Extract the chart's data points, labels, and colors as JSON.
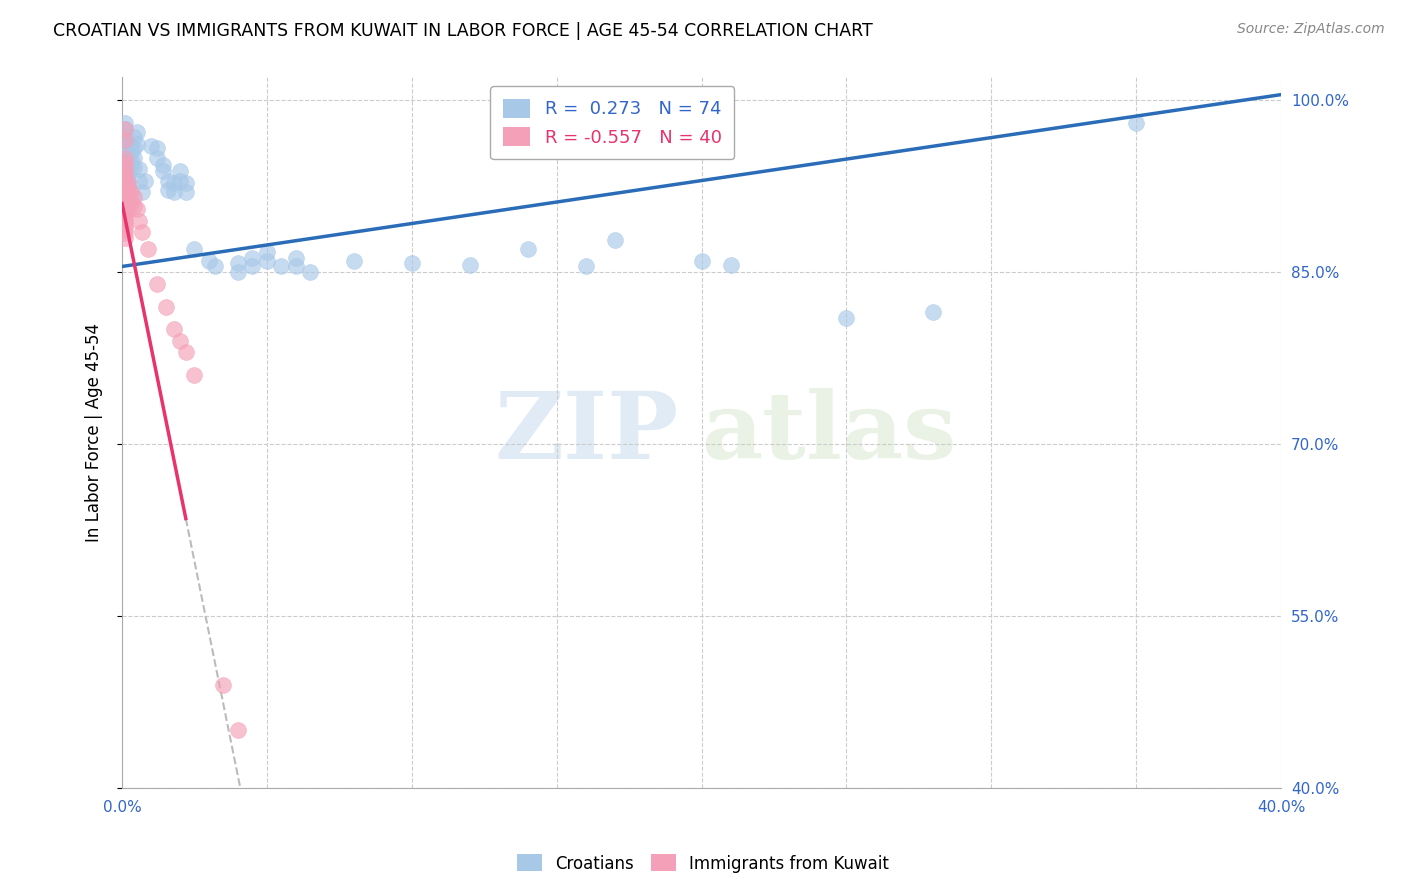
{
  "title": "CROATIAN VS IMMIGRANTS FROM KUWAIT IN LABOR FORCE | AGE 45-54 CORRELATION CHART",
  "source": "Source: ZipAtlas.com",
  "ylabel": "In Labor Force | Age 45-54",
  "xlim": [
    0.0,
    0.4
  ],
  "ylim": [
    0.4,
    1.02
  ],
  "yticks": [
    0.4,
    0.55,
    0.7,
    0.85,
    1.0
  ],
  "ytick_labels": [
    "40.0%",
    "55.0%",
    "70.0%",
    "85.0%",
    "100.0%"
  ],
  "xticks": [
    0.0,
    0.05,
    0.1,
    0.15,
    0.2,
    0.25,
    0.3,
    0.35,
    0.4
  ],
  "xtick_labels": [
    "0.0%",
    "",
    "",
    "",
    "",
    "",
    "",
    "",
    "40.0%"
  ],
  "blue_R": 0.273,
  "blue_N": 74,
  "pink_R": -0.557,
  "pink_N": 40,
  "blue_color": "#A8C8E8",
  "pink_color": "#F4A0B8",
  "blue_line_color": "#2B6CB8",
  "pink_line_color": "#E8336D",
  "blue_scatter": [
    [
      0.001,
      0.98
    ],
    [
      0.001,
      0.975
    ],
    [
      0.001,
      0.968
    ],
    [
      0.001,
      0.962
    ],
    [
      0.001,
      0.958
    ],
    [
      0.001,
      0.953
    ],
    [
      0.001,
      0.948
    ],
    [
      0.001,
      0.943
    ],
    [
      0.001,
      0.94
    ],
    [
      0.001,
      0.937
    ],
    [
      0.001,
      0.934
    ],
    [
      0.001,
      0.93
    ],
    [
      0.001,
      0.927
    ],
    [
      0.001,
      0.924
    ],
    [
      0.001,
      0.92
    ],
    [
      0.001,
      0.917
    ],
    [
      0.002,
      0.96
    ],
    [
      0.002,
      0.955
    ],
    [
      0.002,
      0.95
    ],
    [
      0.002,
      0.945
    ],
    [
      0.002,
      0.94
    ],
    [
      0.002,
      0.935
    ],
    [
      0.002,
      0.93
    ],
    [
      0.002,
      0.925
    ],
    [
      0.003,
      0.96
    ],
    [
      0.003,
      0.955
    ],
    [
      0.003,
      0.948
    ],
    [
      0.003,
      0.942
    ],
    [
      0.004,
      0.968
    ],
    [
      0.004,
      0.958
    ],
    [
      0.004,
      0.95
    ],
    [
      0.004,
      0.942
    ],
    [
      0.005,
      0.972
    ],
    [
      0.005,
      0.962
    ],
    [
      0.006,
      0.94
    ],
    [
      0.006,
      0.93
    ],
    [
      0.007,
      0.92
    ],
    [
      0.008,
      0.93
    ],
    [
      0.01,
      0.96
    ],
    [
      0.012,
      0.958
    ],
    [
      0.012,
      0.95
    ],
    [
      0.014,
      0.944
    ],
    [
      0.014,
      0.938
    ],
    [
      0.016,
      0.93
    ],
    [
      0.016,
      0.922
    ],
    [
      0.018,
      0.928
    ],
    [
      0.018,
      0.92
    ],
    [
      0.02,
      0.938
    ],
    [
      0.02,
      0.93
    ],
    [
      0.022,
      0.928
    ],
    [
      0.022,
      0.92
    ],
    [
      0.025,
      0.87
    ],
    [
      0.03,
      0.86
    ],
    [
      0.032,
      0.855
    ],
    [
      0.04,
      0.858
    ],
    [
      0.04,
      0.85
    ],
    [
      0.045,
      0.862
    ],
    [
      0.045,
      0.855
    ],
    [
      0.05,
      0.868
    ],
    [
      0.05,
      0.86
    ],
    [
      0.055,
      0.855
    ],
    [
      0.06,
      0.862
    ],
    [
      0.06,
      0.855
    ],
    [
      0.065,
      0.85
    ],
    [
      0.08,
      0.86
    ],
    [
      0.1,
      0.858
    ],
    [
      0.12,
      0.856
    ],
    [
      0.14,
      0.87
    ],
    [
      0.16,
      0.855
    ],
    [
      0.17,
      0.878
    ],
    [
      0.2,
      0.86
    ],
    [
      0.21,
      0.856
    ],
    [
      0.25,
      0.81
    ],
    [
      0.28,
      0.815
    ],
    [
      0.35,
      0.98
    ]
  ],
  "pink_scatter": [
    [
      0.001,
      0.975
    ],
    [
      0.001,
      0.965
    ],
    [
      0.001,
      0.95
    ],
    [
      0.001,
      0.945
    ],
    [
      0.001,
      0.94
    ],
    [
      0.001,
      0.936
    ],
    [
      0.001,
      0.932
    ],
    [
      0.001,
      0.928
    ],
    [
      0.001,
      0.924
    ],
    [
      0.001,
      0.92
    ],
    [
      0.001,
      0.916
    ],
    [
      0.001,
      0.912
    ],
    [
      0.001,
      0.908
    ],
    [
      0.001,
      0.904
    ],
    [
      0.001,
      0.9
    ],
    [
      0.001,
      0.896
    ],
    [
      0.001,
      0.892
    ],
    [
      0.001,
      0.888
    ],
    [
      0.001,
      0.884
    ],
    [
      0.001,
      0.88
    ],
    [
      0.002,
      0.928
    ],
    [
      0.002,
      0.92
    ],
    [
      0.002,
      0.912
    ],
    [
      0.002,
      0.904
    ],
    [
      0.003,
      0.92
    ],
    [
      0.003,
      0.91
    ],
    [
      0.004,
      0.916
    ],
    [
      0.004,
      0.908
    ],
    [
      0.005,
      0.905
    ],
    [
      0.006,
      0.895
    ],
    [
      0.007,
      0.885
    ],
    [
      0.009,
      0.87
    ],
    [
      0.012,
      0.84
    ],
    [
      0.015,
      0.82
    ],
    [
      0.018,
      0.8
    ],
    [
      0.02,
      0.79
    ],
    [
      0.022,
      0.78
    ],
    [
      0.025,
      0.76
    ],
    [
      0.035,
      0.49
    ],
    [
      0.04,
      0.45
    ]
  ],
  "watermark_zip": "ZIP",
  "watermark_atlas": "atlas",
  "legend_label_blue": "R =  0.273   N = 74",
  "legend_label_pink": "R = -0.557   N = 40"
}
